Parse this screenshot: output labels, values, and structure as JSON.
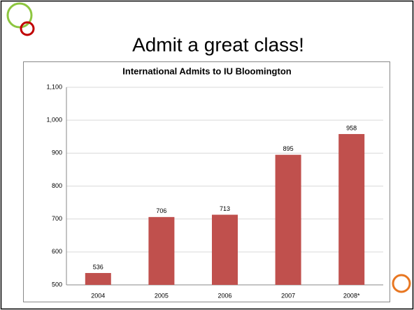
{
  "title": "Admit a great class!",
  "chart_data": {
    "type": "bar",
    "title": "International Admits to IU Bloomington",
    "categories": [
      "2004",
      "2005",
      "2006",
      "2007",
      "2008*"
    ],
    "values": [
      536,
      706,
      713,
      895,
      958
    ],
    "color": "#c0504d",
    "ylim": [
      500,
      1100
    ],
    "yticks": [
      500,
      600,
      700,
      800,
      900,
      {
        "value": 1000,
        "label": "1,000"
      },
      {
        "value": 1100,
        "label": "1,100"
      }
    ],
    "grid": true
  }
}
